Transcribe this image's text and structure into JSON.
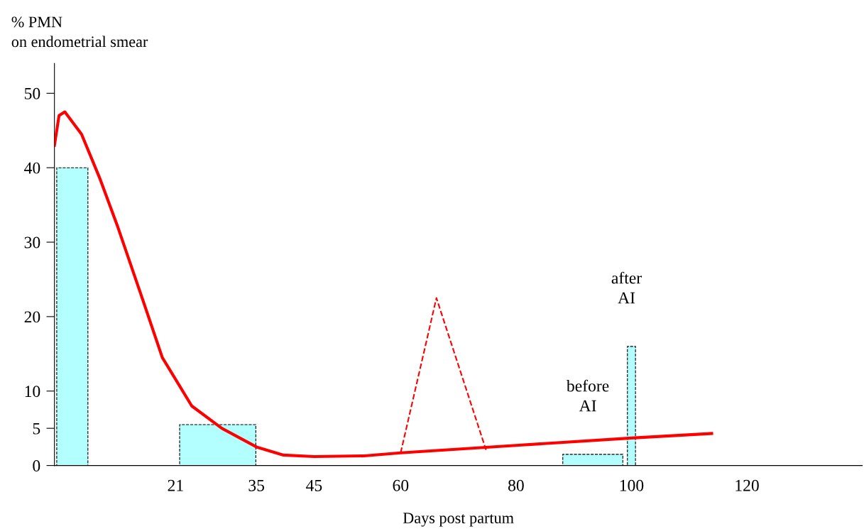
{
  "chart_data": {
    "type": "line",
    "xlabel": "Days post partum",
    "ylabel": "% PMN\non endometrial smear",
    "xlim": [
      0,
      140
    ],
    "ylim": [
      0,
      54
    ],
    "xticks": [
      21,
      35,
      45,
      60,
      80,
      100,
      120
    ],
    "yticks": [
      0,
      5,
      10,
      20,
      30,
      40,
      50
    ],
    "grid": false,
    "legend": false,
    "marker": "none",
    "series": [
      {
        "type": "histogram",
        "color": "#b3ffff",
        "bins": [
          0.4,
          5.8,
          21.7,
          34.9,
          88.1,
          98.5,
          99.3,
          100.7
        ],
        "values": [
          40,
          null,
          5.5,
          null,
          1.5,
          null,
          16
        ]
      },
      {
        "color": "#ff0000",
        "line_style": "solid",
        "x": [
          0,
          0.8,
          1.8,
          4.7,
          7.9,
          11,
          15.2,
          18.7,
          23.8,
          29,
          35,
          39.7,
          45,
          53.7,
          60,
          80,
          100,
          113.9
        ],
        "values": [
          43,
          47,
          47.5,
          44.5,
          38.5,
          32,
          22.5,
          14.5,
          8,
          5,
          2.5,
          1.4,
          1.2,
          1.3,
          1.7,
          2.7,
          3.7,
          4.3
        ]
      },
      {
        "color": "#ff0000",
        "line_style": "dashed",
        "x": [
          60,
          66.2,
          74.8
        ],
        "values": [
          1.7,
          22.5,
          2.1
        ]
      }
    ],
    "annotations": [
      {
        "text": "before\nAI",
        "x": 93.3,
        "y": 1.5
      },
      {
        "text": "after\nAI",
        "x": 100,
        "y": 16
      }
    ]
  }
}
